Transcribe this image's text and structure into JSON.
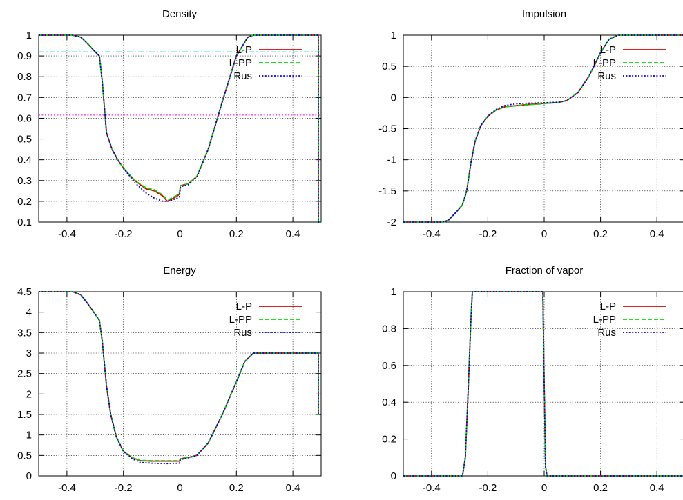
{
  "chart_data": [
    {
      "type": "line",
      "title": "Density",
      "xlabel": "",
      "ylabel": "",
      "xlim": [
        -0.5,
        0.5
      ],
      "ylim": [
        0.1,
        1
      ],
      "xticks": [
        -0.4,
        -0.2,
        0,
        0.2,
        0.4
      ],
      "xtick_labels": [
        "-0.4",
        "-0.2",
        "0",
        "0.2",
        "0.4"
      ],
      "yticks": [
        0.1,
        0.2,
        0.3,
        0.4,
        0.5,
        0.6,
        0.7,
        0.8,
        0.9,
        1
      ],
      "ytick_labels": [
        "0.1",
        "0.2",
        "0.3",
        "0.4",
        "0.5",
        "0.6",
        "0.7",
        "0.8",
        "0.9",
        "1"
      ],
      "grid": true,
      "legend_position": "top-right",
      "hlines": [
        {
          "y": 0.92,
          "color": "#00dddd",
          "style": "dash-dot"
        },
        {
          "y": 0.615,
          "color": "#ee00ee",
          "style": "dotted"
        }
      ],
      "series": [
        {
          "name": "L-P",
          "color": "#dd0000",
          "style": "solid",
          "x": [
            -0.5,
            -0.38,
            -0.35,
            -0.32,
            -0.3,
            -0.285,
            -0.275,
            -0.26,
            -0.24,
            -0.22,
            -0.2,
            -0.16,
            -0.12,
            -0.09,
            -0.06,
            -0.045,
            -0.03,
            -0.01,
            -0.002,
            0.002,
            0.03,
            0.06,
            0.1,
            0.15,
            0.2,
            0.24,
            0.26,
            0.49,
            0.49,
            0.5
          ],
          "y": [
            1,
            1,
            0.99,
            0.95,
            0.92,
            0.9,
            0.78,
            0.53,
            0.45,
            0.4,
            0.36,
            0.3,
            0.26,
            0.25,
            0.225,
            0.2,
            0.21,
            0.225,
            0.235,
            0.275,
            0.285,
            0.32,
            0.45,
            0.68,
            0.9,
            0.99,
            1,
            1,
            0.1,
            0.1
          ]
        },
        {
          "name": "L-PP",
          "color": "#00dd00",
          "style": "dashed",
          "x": [
            -0.5,
            -0.38,
            -0.35,
            -0.32,
            -0.3,
            -0.285,
            -0.275,
            -0.26,
            -0.24,
            -0.22,
            -0.2,
            -0.16,
            -0.12,
            -0.09,
            -0.06,
            -0.045,
            -0.03,
            -0.01,
            -0.002,
            0.002,
            0.03,
            0.06,
            0.1,
            0.15,
            0.2,
            0.24,
            0.26,
            0.49,
            0.49,
            0.5
          ],
          "y": [
            1,
            1,
            0.99,
            0.95,
            0.92,
            0.9,
            0.78,
            0.53,
            0.45,
            0.4,
            0.36,
            0.3,
            0.265,
            0.255,
            0.23,
            0.205,
            0.215,
            0.23,
            0.24,
            0.275,
            0.285,
            0.32,
            0.45,
            0.68,
            0.9,
            0.99,
            1,
            1,
            0.1,
            0.1
          ]
        },
        {
          "name": "Rus",
          "color": "#0000dd",
          "style": "dotted",
          "x": [
            -0.5,
            -0.38,
            -0.35,
            -0.32,
            -0.3,
            -0.285,
            -0.275,
            -0.26,
            -0.24,
            -0.22,
            -0.2,
            -0.16,
            -0.12,
            -0.09,
            -0.06,
            -0.045,
            -0.03,
            -0.01,
            -0.002,
            0.002,
            0.03,
            0.06,
            0.1,
            0.15,
            0.2,
            0.24,
            0.26,
            0.49,
            0.49,
            0.5
          ],
          "y": [
            1,
            1,
            0.99,
            0.95,
            0.92,
            0.9,
            0.78,
            0.53,
            0.45,
            0.4,
            0.36,
            0.29,
            0.24,
            0.215,
            0.2,
            0.2,
            0.205,
            0.215,
            0.22,
            0.27,
            0.28,
            0.315,
            0.45,
            0.68,
            0.9,
            0.99,
            1,
            1,
            0.1,
            0.1
          ]
        }
      ]
    },
    {
      "type": "line",
      "title": "Impulsion",
      "xlabel": "",
      "ylabel": "",
      "xlim": [
        -0.5,
        0.5
      ],
      "ylim": [
        -2,
        1
      ],
      "xticks": [
        -0.4,
        -0.2,
        0,
        0.2,
        0.4
      ],
      "xtick_labels": [
        "-0.4",
        "-0.2",
        "0",
        "0.2",
        "0.4"
      ],
      "yticks": [
        -2,
        -1.5,
        -1,
        -0.5,
        0,
        0.5,
        1
      ],
      "ytick_labels": [
        "-2",
        "-1.5",
        "-1",
        "-0.5",
        "0",
        "0.5",
        "1"
      ],
      "grid": true,
      "legend_position": "top-right",
      "hlines": [],
      "series": [
        {
          "name": "L-P",
          "color": "#dd0000",
          "style": "solid",
          "x": [
            -0.5,
            -0.36,
            -0.34,
            -0.31,
            -0.29,
            -0.275,
            -0.26,
            -0.245,
            -0.225,
            -0.2,
            -0.17,
            -0.14,
            -0.1,
            -0.05,
            0,
            0.05,
            0.08,
            0.12,
            0.16,
            0.2,
            0.23,
            0.26,
            0.5
          ],
          "y": [
            -2,
            -2,
            -1.97,
            -1.83,
            -1.72,
            -1.5,
            -1.05,
            -0.7,
            -0.45,
            -0.3,
            -0.2,
            -0.15,
            -0.13,
            -0.11,
            -0.095,
            -0.08,
            -0.05,
            0.08,
            0.35,
            0.72,
            0.93,
            1,
            1
          ]
        },
        {
          "name": "L-PP",
          "color": "#00dd00",
          "style": "dashed",
          "x": [
            -0.5,
            -0.36,
            -0.34,
            -0.31,
            -0.29,
            -0.275,
            -0.26,
            -0.245,
            -0.225,
            -0.2,
            -0.17,
            -0.14,
            -0.1,
            -0.05,
            0,
            0.05,
            0.08,
            0.12,
            0.16,
            0.2,
            0.23,
            0.26,
            0.5
          ],
          "y": [
            -2,
            -2,
            -1.97,
            -1.83,
            -1.72,
            -1.5,
            -1.05,
            -0.7,
            -0.45,
            -0.3,
            -0.2,
            -0.15,
            -0.135,
            -0.115,
            -0.1,
            -0.08,
            -0.05,
            0.08,
            0.35,
            0.72,
            0.93,
            1,
            1
          ]
        },
        {
          "name": "Rus",
          "color": "#0000dd",
          "style": "dotted",
          "x": [
            -0.5,
            -0.36,
            -0.34,
            -0.31,
            -0.29,
            -0.275,
            -0.26,
            -0.245,
            -0.225,
            -0.2,
            -0.17,
            -0.14,
            -0.1,
            -0.05,
            0,
            0.05,
            0.08,
            0.12,
            0.16,
            0.2,
            0.23,
            0.26,
            0.5
          ],
          "y": [
            -2,
            -2,
            -1.97,
            -1.83,
            -1.72,
            -1.5,
            -1.05,
            -0.7,
            -0.45,
            -0.3,
            -0.19,
            -0.13,
            -0.1,
            -0.09,
            -0.085,
            -0.075,
            -0.05,
            0.08,
            0.35,
            0.72,
            0.93,
            1,
            1
          ]
        }
      ]
    },
    {
      "type": "line",
      "title": "Energy",
      "xlabel": "",
      "ylabel": "",
      "xlim": [
        -0.5,
        0.5
      ],
      "ylim": [
        0,
        4.5
      ],
      "xticks": [
        -0.4,
        -0.2,
        0,
        0.2,
        0.4
      ],
      "xtick_labels": [
        "-0.4",
        "-0.2",
        "0",
        "0.2",
        "0.4"
      ],
      "yticks": [
        0,
        0.5,
        1,
        1.5,
        2,
        2.5,
        3,
        3.5,
        4,
        4.5
      ],
      "ytick_labels": [
        "0",
        "0.5",
        "1",
        "1.5",
        "2",
        "2.5",
        "3",
        "3.5",
        "4",
        "4.5"
      ],
      "grid": true,
      "legend_position": "top-right",
      "hlines": [],
      "series": [
        {
          "name": "L-P",
          "color": "#dd0000",
          "style": "solid",
          "x": [
            -0.5,
            -0.38,
            -0.35,
            -0.32,
            -0.3,
            -0.285,
            -0.275,
            -0.26,
            -0.245,
            -0.225,
            -0.2,
            -0.17,
            -0.14,
            -0.1,
            -0.05,
            -0.002,
            0.002,
            0.03,
            0.06,
            0.1,
            0.15,
            0.2,
            0.23,
            0.26,
            0.49,
            0.49,
            0.5
          ],
          "y": [
            4.5,
            4.5,
            4.42,
            4.15,
            3.95,
            3.8,
            3.3,
            2.2,
            1.5,
            0.95,
            0.6,
            0.45,
            0.37,
            0.36,
            0.36,
            0.36,
            0.42,
            0.45,
            0.5,
            0.8,
            1.5,
            2.3,
            2.8,
            3,
            3,
            1.5,
            1.5
          ]
        },
        {
          "name": "L-PP",
          "color": "#00dd00",
          "style": "dashed",
          "x": [
            -0.5,
            -0.38,
            -0.35,
            -0.32,
            -0.3,
            -0.285,
            -0.275,
            -0.26,
            -0.245,
            -0.225,
            -0.2,
            -0.17,
            -0.14,
            -0.1,
            -0.05,
            -0.002,
            0.002,
            0.03,
            0.06,
            0.1,
            0.15,
            0.2,
            0.23,
            0.26,
            0.49,
            0.49,
            0.5
          ],
          "y": [
            4.5,
            4.5,
            4.42,
            4.15,
            3.95,
            3.8,
            3.3,
            2.2,
            1.5,
            0.95,
            0.6,
            0.45,
            0.38,
            0.37,
            0.37,
            0.37,
            0.42,
            0.45,
            0.5,
            0.8,
            1.5,
            2.3,
            2.8,
            3,
            3,
            1.5,
            1.5
          ]
        },
        {
          "name": "Rus",
          "color": "#0000dd",
          "style": "dotted",
          "x": [
            -0.5,
            -0.38,
            -0.35,
            -0.32,
            -0.3,
            -0.285,
            -0.275,
            -0.26,
            -0.245,
            -0.225,
            -0.2,
            -0.17,
            -0.14,
            -0.1,
            -0.05,
            -0.002,
            0.002,
            0.03,
            0.06,
            0.1,
            0.15,
            0.2,
            0.23,
            0.26,
            0.49,
            0.49,
            0.5
          ],
          "y": [
            4.5,
            4.5,
            4.42,
            4.15,
            3.95,
            3.8,
            3.3,
            2.2,
            1.5,
            0.95,
            0.6,
            0.42,
            0.33,
            0.31,
            0.3,
            0.31,
            0.4,
            0.44,
            0.5,
            0.8,
            1.5,
            2.3,
            2.8,
            3,
            3,
            1.5,
            1.5
          ]
        }
      ]
    },
    {
      "type": "line",
      "title": "Fraction of vapor",
      "xlabel": "",
      "ylabel": "",
      "xlim": [
        -0.5,
        0.5
      ],
      "ylim": [
        0,
        1
      ],
      "xticks": [
        -0.4,
        -0.2,
        0,
        0.2,
        0.4
      ],
      "xtick_labels": [
        "-0.4",
        "-0.2",
        "0",
        "0.2",
        "0.4"
      ],
      "yticks": [
        0,
        0.2,
        0.4,
        0.6,
        0.8,
        1
      ],
      "ytick_labels": [
        "0",
        "0.2",
        "0.4",
        "0.6",
        "0.8",
        "1"
      ],
      "grid": true,
      "legend_position": "top-right",
      "hlines": [],
      "series": [
        {
          "name": "L-P",
          "color": "#dd0000",
          "style": "solid",
          "x": [
            -0.5,
            -0.29,
            -0.28,
            -0.27,
            -0.26,
            -0.255,
            -0.25,
            -0.005,
            0,
            0.005,
            0.01,
            0.5
          ],
          "y": [
            0,
            0,
            0.1,
            0.45,
            0.85,
            1,
            1,
            1,
            0.5,
            0.05,
            0,
            0
          ]
        },
        {
          "name": "L-PP",
          "color": "#00dd00",
          "style": "dashed",
          "x": [
            -0.5,
            -0.29,
            -0.28,
            -0.27,
            -0.26,
            -0.255,
            -0.25,
            -0.005,
            0,
            0.005,
            0.01,
            0.5
          ],
          "y": [
            0,
            0,
            0.1,
            0.45,
            0.85,
            1,
            1,
            1,
            0.5,
            0.05,
            0,
            0
          ]
        },
        {
          "name": "Rus",
          "color": "#0000dd",
          "style": "dotted",
          "x": [
            -0.5,
            -0.29,
            -0.28,
            -0.27,
            -0.26,
            -0.255,
            -0.25,
            -0.005,
            0,
            0.005,
            0.01,
            0.5
          ],
          "y": [
            0,
            0,
            0.1,
            0.45,
            0.85,
            1,
            1,
            1,
            0.5,
            0.05,
            0,
            0
          ]
        }
      ]
    }
  ]
}
